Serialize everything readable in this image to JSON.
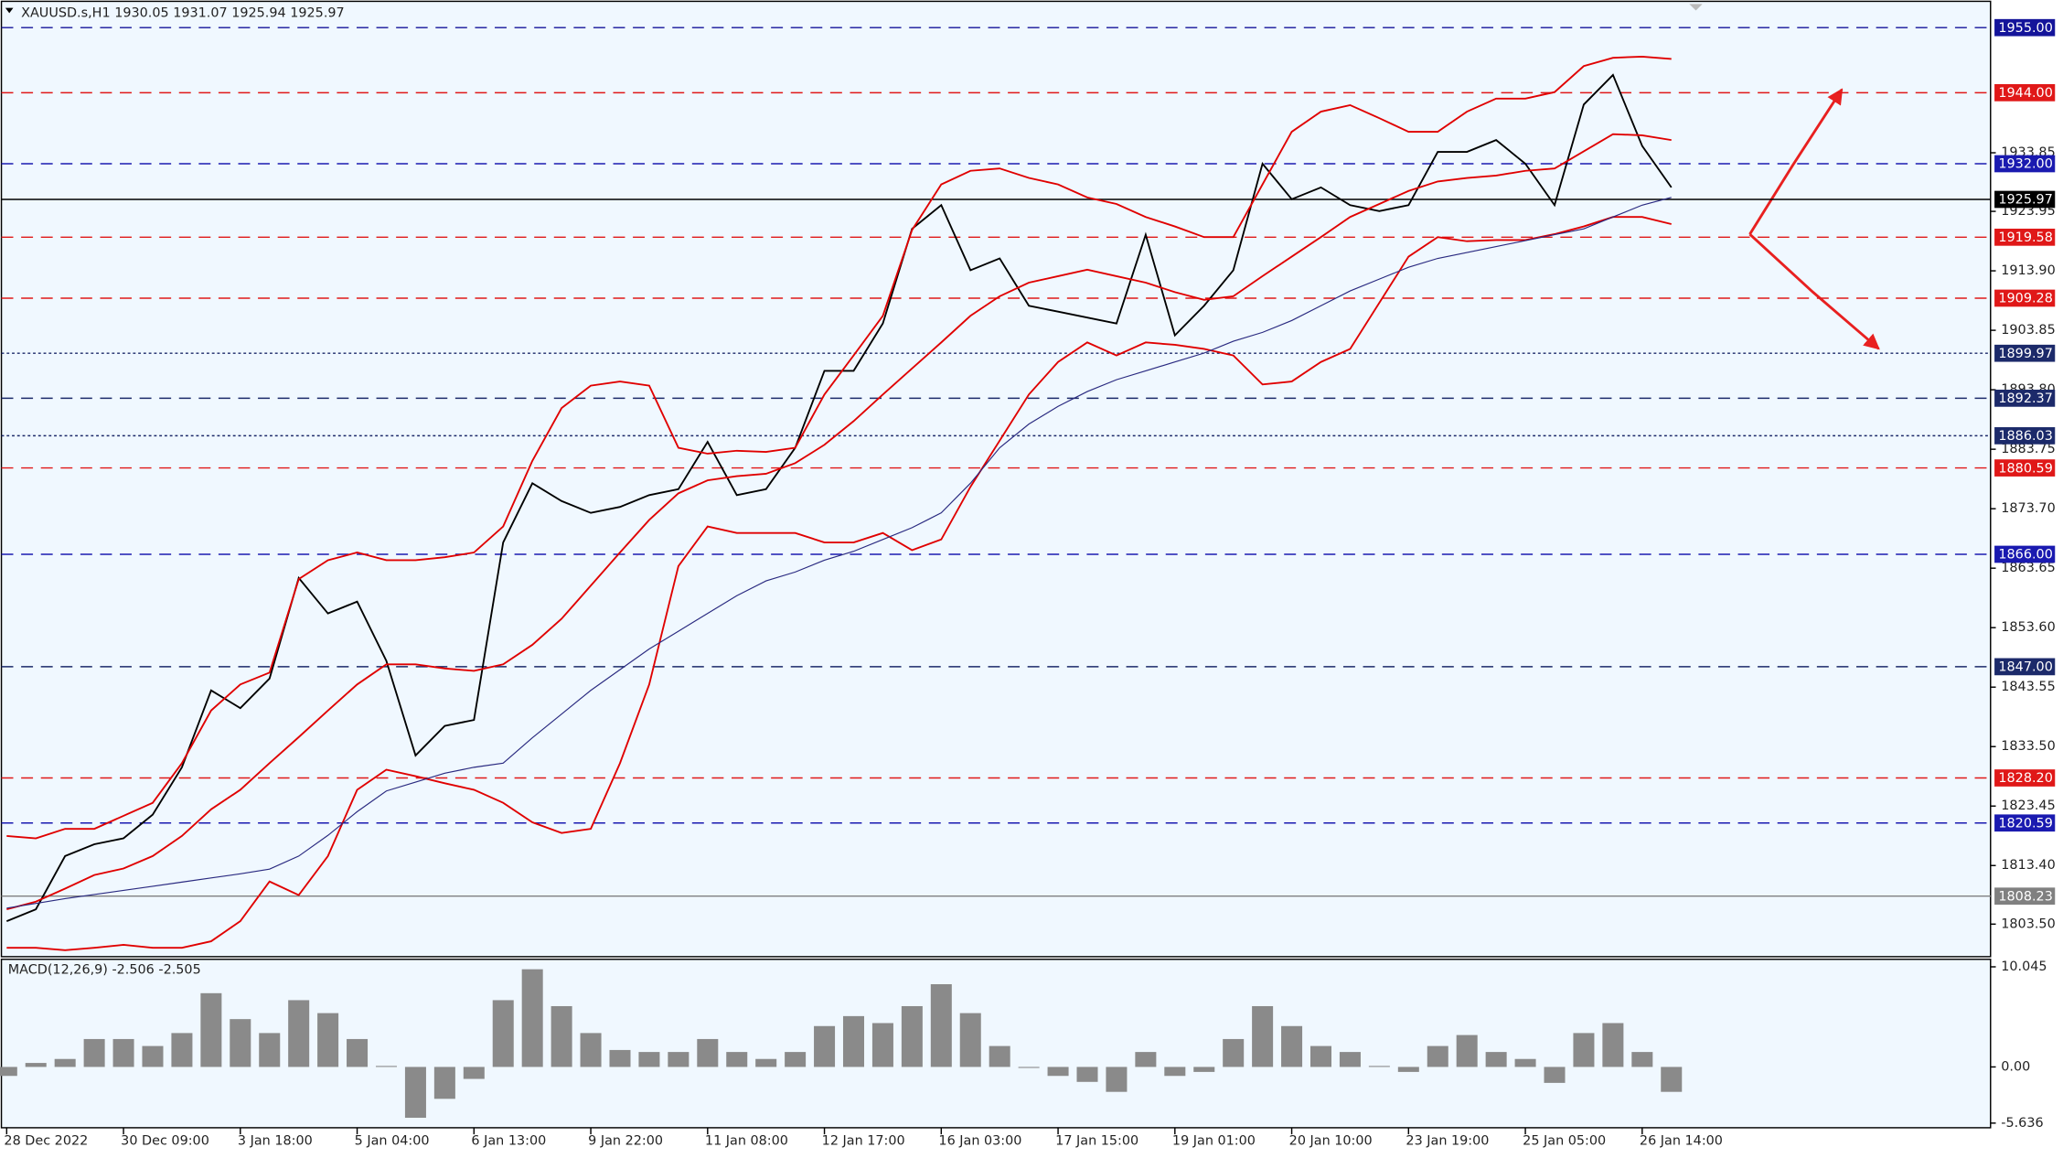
{
  "chart_data": [
    {
      "type": "line",
      "title": "XAUUSD.s,H1  1930.05 1931.07 1925.94 1925.97",
      "ylim": [
        1798,
        1959
      ],
      "yticks": [
        1933.85,
        1923.95,
        {
          "value": 1913.9,
          "label": "1913.90"
        },
        1903.85,
        {
          "value": 1893.8,
          "label": "1893.80"
        },
        1883.75,
        {
          "value": 1873.7,
          "label": "1873.70"
        },
        1863.65,
        {
          "value": 1853.6,
          "label": "1853.60"
        },
        1843.55,
        {
          "value": 1833.5,
          "label": "1833.50"
        },
        1823.45,
        {
          "value": 1813.4,
          "label": "1813.40"
        },
        {
          "value": 1803.5,
          "label": "1803.50"
        }
      ],
      "levels": [
        {
          "value": 1955,
          "label": "1955.00",
          "color": "#14149a",
          "style": "dashed"
        },
        {
          "value": 1944,
          "label": "1944.00",
          "color": "#e01818",
          "style": "dashed"
        },
        {
          "value": 1932,
          "label": "1932.00",
          "color": "#1a1ab0",
          "style": "dashed"
        },
        {
          "value": 1925.97,
          "label": "1925.97",
          "color": "#000000",
          "style": "solid"
        },
        {
          "value": 1919.58,
          "label": "1919.58",
          "color": "#e01818",
          "style": "dashed"
        },
        {
          "value": 1909.28,
          "label": "1909.28",
          "color": "#e01818",
          "style": "dashed"
        },
        {
          "value": 1899.97,
          "label": "1899.97",
          "color": "#1c2a6a",
          "style": "dotted"
        },
        {
          "value": 1892.37,
          "label": "1892.37",
          "color": "#1c2a6a",
          "style": "dashed"
        },
        {
          "value": 1886.03,
          "label": "1886.03",
          "color": "#1c2a6a",
          "style": "dotted"
        },
        {
          "value": 1880.59,
          "label": "1880.59",
          "color": "#e01818",
          "style": "dashed"
        },
        {
          "value": 1866,
          "label": "1866.00",
          "color": "#1a1ab0",
          "style": "dashed"
        },
        {
          "value": 1847,
          "label": "1847.00",
          "color": "#1c2a6a",
          "style": "dashed"
        },
        {
          "value": 1828.2,
          "label": "1828.20",
          "color": "#e01818",
          "style": "dashed"
        },
        {
          "value": 1820.59,
          "label": "1820.59",
          "color": "#1a1ab0",
          "style": "dashed"
        },
        {
          "value": 1808.23,
          "label": "1808.23",
          "color": "#808080",
          "style": "solid"
        }
      ],
      "series": [
        {
          "color": "#000000",
          "values": [
            1804,
            1806,
            1815,
            1817,
            1818,
            1822,
            1830,
            1843,
            1840,
            1845,
            1862,
            1856,
            1858,
            1848,
            1832,
            1837,
            1838,
            1868,
            1878,
            1875,
            1873,
            1874,
            1876,
            1877,
            1885,
            1876,
            1877,
            1884,
            1897,
            1897,
            1905,
            1921,
            1925,
            1914,
            1916,
            1908,
            1907,
            1906,
            1905,
            1920,
            1903,
            1908,
            1914,
            1932,
            1926,
            1928,
            1925,
            1924,
            1925,
            1934,
            1934,
            1936,
            1932,
            1925,
            1942,
            1947,
            1935,
            1928
          ]
        },
        {
          "color": "#e00000",
          "values": [
            1818.4,
            1818,
            1819.6,
            1819.6,
            1821.8,
            1824,
            1830.7,
            1839.6,
            1844,
            1846,
            1861.8,
            1865,
            1866.3,
            1865,
            1865,
            1865.5,
            1866.3,
            1870.7,
            1881.8,
            1890.7,
            1894.5,
            1895.2,
            1894.5,
            1884,
            1883,
            1883.5,
            1883.3,
            1884,
            1893,
            1899.6,
            1906.3,
            1920.8,
            1928.5,
            1930.8,
            1931.2,
            1929.6,
            1928.5,
            1926.3,
            1925.2,
            1923,
            1921.4,
            1919.6,
            1919.6,
            1928.5,
            1937.4,
            1940.8,
            1941.9,
            1939.7,
            1937.4,
            1937.4,
            1940.8,
            1943,
            1943,
            1944.1,
            1948.5,
            1949.9,
            1950.1,
            1949.7
          ]
        },
        {
          "color": "#e00000",
          "values": [
            1806,
            1807.3,
            1809.5,
            1811.8,
            1812.9,
            1815,
            1818.4,
            1822.9,
            1826.2,
            1830.7,
            1835.1,
            1839.6,
            1844,
            1847.4,
            1847.4,
            1846.7,
            1846.3,
            1847.4,
            1850.7,
            1855.1,
            1860.7,
            1866.3,
            1871.8,
            1876.3,
            1878.5,
            1879.2,
            1879.6,
            1881.4,
            1884.5,
            1888.5,
            1893,
            1897.4,
            1901.8,
            1906.3,
            1909.6,
            1911.9,
            1913,
            1914.1,
            1913,
            1911.9,
            1910.3,
            1909,
            1909.6,
            1913,
            1916.3,
            1919.6,
            1923,
            1925.2,
            1927.4,
            1929,
            1929.6,
            1930,
            1930.8,
            1931.2,
            1934.1,
            1937,
            1936.8,
            1936
          ]
        },
        {
          "color": "#e00000",
          "values": [
            1799.5,
            1799.5,
            1799.1,
            1799.5,
            1800,
            1799.5,
            1799.5,
            1800.6,
            1804,
            1810.7,
            1808.4,
            1815,
            1826.2,
            1829.6,
            1828.5,
            1827.3,
            1826.2,
            1824,
            1820.7,
            1818.9,
            1819.6,
            1830.7,
            1844,
            1864,
            1870.7,
            1869.6,
            1869.6,
            1869.6,
            1868,
            1868,
            1869.6,
            1866.7,
            1868.5,
            1877.4,
            1885.2,
            1893,
            1898.5,
            1901.8,
            1899.6,
            1901.8,
            1901.4,
            1900.7,
            1899.6,
            1894.7,
            1895.2,
            1898.5,
            1900.7,
            1908.5,
            1916.3,
            1919.6,
            1918.9,
            1919.1,
            1919.1,
            1920.1,
            1921.4,
            1923,
            1923,
            1921.8
          ]
        },
        {
          "color": "#2a2a80",
          "values": [
            1806.2,
            1807,
            1807.8,
            1808.5,
            1809.2,
            1809.9,
            1810.6,
            1811.3,
            1812,
            1812.8,
            1815,
            1818.5,
            1822.5,
            1826,
            1827.5,
            1829,
            1830,
            1830.7,
            1835,
            1839,
            1843,
            1846.5,
            1850,
            1853,
            1856,
            1859,
            1861.5,
            1863,
            1865,
            1866.5,
            1868.5,
            1870.5,
            1873,
            1878,
            1884,
            1888,
            1891,
            1893.5,
            1895.5,
            1897,
            1898.5,
            1900,
            1902,
            1903.5,
            1905.5,
            1908,
            1910.5,
            1912.5,
            1914.5,
            1916,
            1917,
            1918,
            1919,
            1920,
            1921,
            1923,
            1925,
            1926.3
          ]
        }
      ]
    },
    {
      "type": "bar",
      "title": "MACD(12,26,9) -2.506 -2.505",
      "color": "#8a8a8a",
      "ylim": [
        -6.1,
        10.8
      ],
      "yticks": [
        10.045,
        {
          "value": 0,
          "label": "0.00"
        },
        -5.636
      ],
      "categories": [
        "28 Dec 2022",
        null,
        null,
        null,
        "30 Dec 09:00",
        null,
        null,
        null,
        "3 Jan 18:00",
        null,
        null,
        null,
        "5 Jan 04:00",
        null,
        null,
        null,
        "6 Jan 13:00",
        null,
        null,
        null,
        "9 Jan 22:00",
        null,
        null,
        null,
        "11 Jan 08:00",
        null,
        null,
        null,
        "12 Jan 17:00",
        null,
        null,
        null,
        "16 Jan 03:00",
        null,
        null,
        null,
        "17 Jan 15:00",
        null,
        null,
        null,
        "19 Jan 01:00",
        null,
        null,
        null,
        "20 Jan 10:00",
        null,
        null,
        null,
        "23 Jan 19:00",
        null,
        null,
        null,
        "25 Jan 05:00",
        null,
        null,
        null,
        "26 Jan 14:00",
        null
      ],
      "values": [
        -0.9,
        0.4,
        0.8,
        2.8,
        2.8,
        2.1,
        3.4,
        7.4,
        4.8,
        3.4,
        6.7,
        5.4,
        2.8,
        0.1,
        -5.1,
        -3.2,
        -1.2,
        6.7,
        9.8,
        6.1,
        3.4,
        1.7,
        1.5,
        1.5,
        2.8,
        1.5,
        0.8,
        1.5,
        4.1,
        5.1,
        4.4,
        6.1,
        8.3,
        5.4,
        2.1,
        -0.1,
        -0.9,
        -1.5,
        -2.5,
        1.5,
        -0.9,
        -0.5,
        2.8,
        6.1,
        4.1,
        2.1,
        1.5,
        0.1,
        -0.5,
        2.1,
        3.2,
        1.5,
        0.8,
        -1.6,
        3.4,
        4.4,
        1.5,
        -2.5
      ]
    }
  ]
}
